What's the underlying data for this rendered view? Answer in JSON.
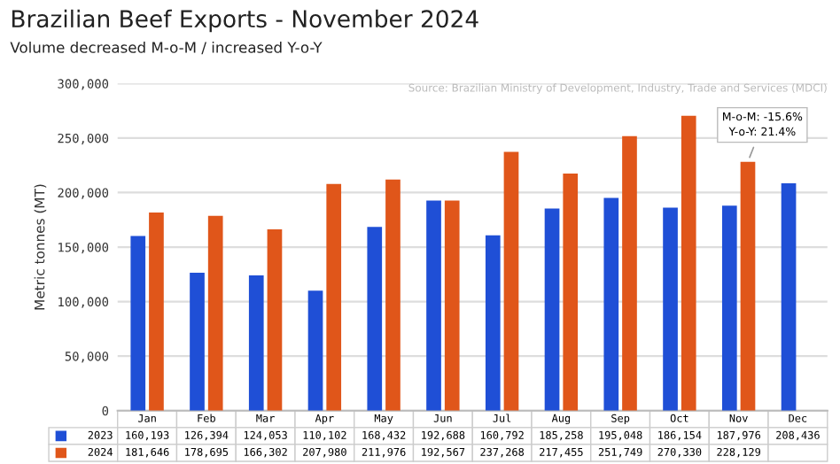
{
  "chart_data": {
    "type": "bar",
    "title": "Brazilian Beef Exports - November 2024",
    "subtitle": "Volume decreased M-o-M / increased Y-o-Y",
    "ylabel": "Metric tonnes (MT)",
    "categories": [
      "Jan",
      "Feb",
      "Mar",
      "Apr",
      "May",
      "Jun",
      "Jul",
      "Aug",
      "Sep",
      "Oct",
      "Nov",
      "Dec"
    ],
    "series": [
      {
        "name": "2023",
        "color": "#1f4fd6",
        "values": [
          160193,
          126394,
          124053,
          110102,
          168432,
          192688,
          160792,
          185258,
          195048,
          186154,
          187976,
          208436
        ],
        "value_labels": [
          "160,193",
          "126,394",
          "124,053",
          "110,102",
          "168,432",
          "192,688",
          "160,792",
          "185,258",
          "195,048",
          "186,154",
          "187,976",
          "208,436"
        ]
      },
      {
        "name": "2024",
        "color": "#e0561a",
        "values": [
          181646,
          178695,
          166302,
          207980,
          211976,
          192567,
          237268,
          217455,
          251749,
          270330,
          228129,
          null
        ],
        "value_labels": [
          "181,646",
          "178,695",
          "166,302",
          "207,980",
          "211,976",
          "192,567",
          "237,268",
          "217,455",
          "251,749",
          "270,330",
          "228,129",
          null
        ]
      }
    ],
    "ylim": [
      0,
      300000
    ],
    "yticks": [
      {
        "value": 0,
        "label": "0"
      },
      {
        "value": 50000,
        "label": "50,000"
      },
      {
        "value": 100000,
        "label": "100,000"
      },
      {
        "value": 150000,
        "label": "150,000"
      },
      {
        "value": 200000,
        "label": "200,000"
      },
      {
        "value": 250000,
        "label": "250,000"
      },
      {
        "value": 300000,
        "label": "300,000"
      }
    ],
    "grid": "y",
    "legend": "bottom left",
    "annotations": [
      {
        "text": "M-o-M: -15.6%\nY-o-Y: 21.4%",
        "x": "Nov",
        "y": 228129
      },
      "Source: Brazilian Ministry of Development, Industry, Trade and Services (MDCI)"
    ]
  }
}
